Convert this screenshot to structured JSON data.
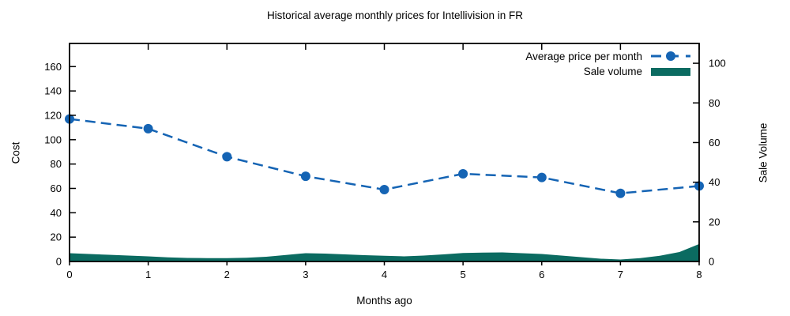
{
  "chart_data": {
    "type": "line",
    "title": "Historical average monthly prices for Intellivision in FR",
    "xlabel": "Months ago",
    "ylabel_left": "Cost",
    "ylabel_right": "Sale Volume",
    "x_ticks": [
      0,
      1,
      2,
      3,
      4,
      5,
      6,
      7,
      8
    ],
    "y_left_ticks": [
      0,
      20,
      40,
      60,
      80,
      100,
      120,
      140,
      160
    ],
    "y_left_range": [
      0,
      179
    ],
    "y_right_ticks": [
      0,
      20,
      40,
      60,
      80,
      100
    ],
    "y_right_range": [
      0,
      110
    ],
    "grid": false,
    "legend_position": "top-right",
    "series": [
      {
        "name": "Average price per month",
        "axis": "left",
        "style": "dashed-line-with-markers",
        "color": "#1564b4",
        "x": [
          0,
          1,
          2,
          3,
          4,
          5,
          6,
          7,
          8
        ],
        "values": [
          117,
          109,
          86,
          70,
          59,
          72,
          69,
          56,
          62
        ]
      },
      {
        "name": "Sale volume",
        "axis": "right",
        "style": "filled-area",
        "color": "#0b6b61",
        "x": [
          0,
          0.25,
          0.5,
          0.75,
          1,
          1.25,
          1.5,
          1.75,
          2,
          2.25,
          2.5,
          2.75,
          3,
          3.25,
          3.5,
          3.75,
          4,
          4.25,
          4.5,
          4.75,
          5,
          5.25,
          5.5,
          5.75,
          6,
          6.25,
          6.5,
          6.75,
          7,
          7.25,
          7.5,
          7.75,
          8
        ],
        "values": [
          4.2,
          3.8,
          3.4,
          3.0,
          2.6,
          2.1,
          1.8,
          1.7,
          1.7,
          1.9,
          2.4,
          3.3,
          4.2,
          4.0,
          3.6,
          3.2,
          2.9,
          2.6,
          3.0,
          3.6,
          4.3,
          4.5,
          4.6,
          4.2,
          3.8,
          3.0,
          2.2,
          1.4,
          1.0,
          1.7,
          2.9,
          4.8,
          8.8
        ]
      }
    ]
  }
}
